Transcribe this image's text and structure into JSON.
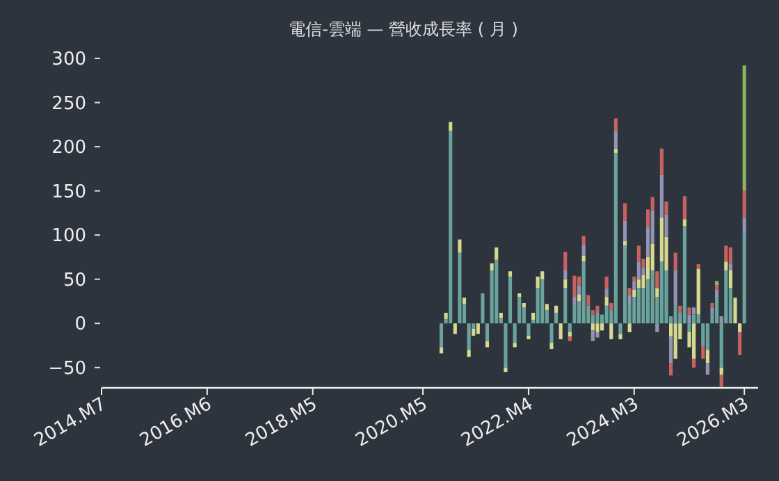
{
  "chart_data": {
    "type": "bar",
    "title": "電信-雲端 — 營收成長率 ( 月 )",
    "stacked": true,
    "x": [
      "2020-09",
      "2020-10",
      "2020-11",
      "2020-12",
      "2021-01",
      "2021-02",
      "2021-03",
      "2021-04",
      "2021-05",
      "2021-06",
      "2021-07",
      "2021-08",
      "2021-09",
      "2021-10",
      "2021-11",
      "2021-12",
      "2022-01",
      "2022-02",
      "2022-03",
      "2022-04",
      "2022-05",
      "2022-06",
      "2022-07",
      "2022-08",
      "2022-09",
      "2022-10",
      "2022-11",
      "2022-12",
      "2023-01",
      "2023-02",
      "2023-03",
      "2023-04",
      "2023-05",
      "2023-06",
      "2023-07",
      "2023-08",
      "2023-09",
      "2023-10",
      "2023-11",
      "2023-12",
      "2024-01",
      "2024-02",
      "2024-03",
      "2024-04",
      "2024-05",
      "2024-06",
      "2024-07",
      "2024-08",
      "2024-09",
      "2024-10",
      "2024-11",
      "2024-12",
      "2025-01",
      "2025-02",
      "2025-03",
      "2025-04",
      "2025-05",
      "2025-06",
      "2025-07",
      "2025-08",
      "2025-09",
      "2025-10",
      "2025-11",
      "2025-12",
      "2026-01",
      "2026-02",
      "2026-03"
    ],
    "series": [
      {
        "color": "#6aa39c",
        "values": [
          -27,
          5,
          218,
          0,
          80,
          22,
          -30,
          -6,
          0,
          34,
          -20,
          60,
          72,
          6,
          -50,
          53,
          -22,
          30,
          18,
          -14,
          4,
          40,
          50,
          15,
          -22,
          12,
          0,
          40,
          -10,
          20,
          25,
          70,
          20,
          10,
          12,
          10,
          20,
          15,
          193,
          -12,
          88,
          20,
          30,
          40,
          40,
          50,
          60,
          30,
          70,
          60,
          8,
          20,
          12,
          110,
          -10,
          10,
          10,
          -25,
          -30,
          10,
          30,
          -50,
          60,
          40,
          0,
          0,
          100
        ]
      },
      {
        "color": "#d6d98e",
        "values": [
          -7,
          7,
          10,
          -12,
          15,
          7,
          -8,
          -8,
          -12,
          0,
          -7,
          8,
          14,
          6,
          -5,
          6,
          -5,
          4,
          5,
          -4,
          8,
          13,
          9,
          7,
          -7,
          8,
          -18,
          10,
          -5,
          0,
          8,
          7,
          0,
          -8,
          -10,
          -8,
          10,
          -18,
          5,
          -6,
          5,
          -10,
          8,
          10,
          15,
          25,
          30,
          10,
          50,
          38,
          -15,
          -40,
          -18,
          8,
          -17,
          -40,
          52,
          0,
          -15,
          0,
          0,
          -8,
          10,
          20,
          29,
          -10,
          0
        ]
      },
      {
        "color": "#9294b2",
        "values": [
          0,
          0,
          0,
          0,
          0,
          0,
          0,
          0,
          0,
          0,
          0,
          0,
          0,
          0,
          0,
          0,
          0,
          0,
          0,
          0,
          0,
          0,
          0,
          0,
          0,
          0,
          0,
          10,
          0,
          10,
          10,
          12,
          0,
          -12,
          -6,
          0,
          10,
          0,
          20,
          0,
          23,
          12,
          10,
          20,
          8,
          34,
          38,
          -10,
          48,
          25,
          -30,
          40,
          0,
          0,
          10,
          8,
          0,
          0,
          -13,
          8,
          8,
          8,
          0,
          8,
          0,
          0,
          20
        ]
      },
      {
        "color": "#c7625f",
        "values": [
          0,
          0,
          0,
          0,
          0,
          0,
          0,
          0,
          0,
          0,
          0,
          0,
          0,
          0,
          0,
          0,
          0,
          0,
          0,
          0,
          0,
          0,
          0,
          0,
          0,
          0,
          0,
          21,
          -5,
          24,
          10,
          10,
          12,
          5,
          8,
          0,
          13,
          8,
          14,
          0,
          20,
          8,
          5,
          18,
          10,
          20,
          15,
          19,
          30,
          15,
          -14,
          20,
          8,
          26,
          8,
          -10,
          5,
          -15,
          0,
          5,
          5,
          -14,
          18,
          18,
          0,
          -26,
          30
        ]
      },
      {
        "color": "#8fb35c",
        "values": [
          0,
          0,
          0,
          0,
          0,
          0,
          0,
          0,
          0,
          0,
          0,
          0,
          0,
          0,
          0,
          0,
          0,
          0,
          0,
          0,
          0,
          0,
          0,
          0,
          0,
          0,
          0,
          0,
          0,
          0,
          0,
          0,
          0,
          0,
          0,
          0,
          0,
          0,
          0,
          0,
          0,
          0,
          0,
          0,
          0,
          0,
          0,
          0,
          0,
          0,
          0,
          0,
          0,
          0,
          0,
          0,
          0,
          0,
          0,
          0,
          5,
          0,
          0,
          0,
          0,
          0,
          142
        ]
      }
    ],
    "xlim": [
      "2014-07",
      "2026-06"
    ],
    "xticks": [
      {
        "value": "2014-07",
        "label": "2014.M7"
      },
      {
        "value": "2016-06",
        "label": "2016.M6"
      },
      {
        "value": "2018-05",
        "label": "2018.M5"
      },
      {
        "value": "2020-05",
        "label": "2020.M5"
      },
      {
        "value": "2022-04",
        "label": "2022.M4"
      },
      {
        "value": "2024-03",
        "label": "2024.M3"
      },
      {
        "value": "2026-03",
        "label": "2026.M3"
      }
    ],
    "ylim": [
      -73,
      300
    ],
    "yticks": [
      -50,
      0,
      50,
      100,
      150,
      200,
      250,
      300
    ]
  }
}
